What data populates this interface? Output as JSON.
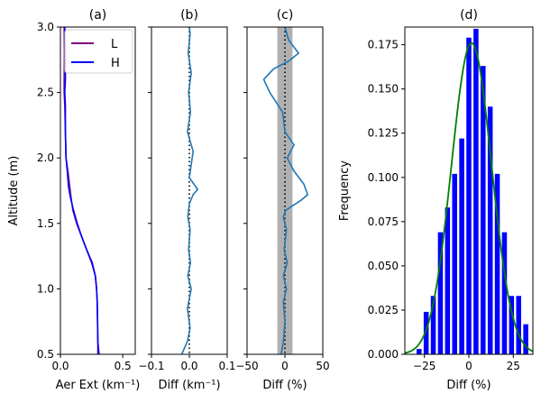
{
  "chart_data": [
    {
      "panel": "(a)",
      "type": "line",
      "title": "(a)",
      "xlabel": "Aer Ext (km⁻¹)",
      "ylabel": "Altitude (m)",
      "xlim": [
        0,
        0.6
      ],
      "ylim": [
        0.5,
        3.0
      ],
      "xticks": [
        0.0,
        0.5
      ],
      "xtick_labels": [
        "0.0",
        "0.5"
      ],
      "yticks": [
        0.5,
        1.0,
        1.5,
        2.0,
        2.5,
        3.0
      ],
      "ytick_labels": [
        "0.5",
        "1.0",
        "1.5",
        "2.0",
        "2.5",
        "3.0"
      ],
      "legend": {
        "position": "upper-right",
        "entries": [
          "L",
          "H"
        ]
      },
      "series": [
        {
          "name": "L",
          "color": "#800080",
          "points": [
            [
              0.3,
              0.5
            ],
            [
              0.3,
              0.6
            ],
            [
              0.298,
              0.75
            ],
            [
              0.295,
              0.9
            ],
            [
              0.29,
              1.0
            ],
            [
              0.28,
              1.1
            ],
            [
              0.25,
              1.2
            ],
            [
              0.21,
              1.3
            ],
            [
              0.17,
              1.4
            ],
            [
              0.13,
              1.5
            ],
            [
              0.1,
              1.6
            ],
            [
              0.085,
              1.7
            ],
            [
              0.075,
              1.78
            ],
            [
              0.06,
              1.9
            ],
            [
              0.045,
              2.0
            ],
            [
              0.04,
              2.2
            ],
            [
              0.035,
              2.4
            ],
            [
              0.03,
              2.5
            ],
            [
              0.03,
              2.6
            ],
            [
              0.032,
              2.8
            ],
            [
              0.03,
              3.0
            ]
          ]
        },
        {
          "name": "H",
          "color": "#0000ff",
          "points": [
            [
              0.31,
              0.5
            ],
            [
              0.3,
              0.6
            ],
            [
              0.298,
              0.75
            ],
            [
              0.295,
              0.9
            ],
            [
              0.29,
              1.0
            ],
            [
              0.28,
              1.1
            ],
            [
              0.255,
              1.2
            ],
            [
              0.21,
              1.3
            ],
            [
              0.17,
              1.4
            ],
            [
              0.135,
              1.5
            ],
            [
              0.105,
              1.6
            ],
            [
              0.08,
              1.7
            ],
            [
              0.065,
              1.78
            ],
            [
              0.055,
              1.9
            ],
            [
              0.045,
              2.0
            ],
            [
              0.04,
              2.2
            ],
            [
              0.04,
              2.4
            ],
            [
              0.035,
              2.5
            ],
            [
              0.04,
              2.6
            ],
            [
              0.04,
              2.8
            ],
            [
              0.035,
              3.0
            ]
          ]
        }
      ]
    },
    {
      "panel": "(b)",
      "type": "line",
      "title": "(b)",
      "xlabel": "Diff (km⁻¹)",
      "xlim": [
        -0.1,
        0.1
      ],
      "ylim": [
        0.5,
        3.0
      ],
      "xticks": [
        -0.1,
        0.0,
        0.1
      ],
      "xtick_labels": [
        "−0.1",
        "0.0",
        "0.1"
      ],
      "zero_line": {
        "x": 0.0,
        "style": "dotted",
        "color": "#000000"
      },
      "series": [
        {
          "color": "#1f77b4",
          "points": [
            [
              -0.02,
              0.5
            ],
            [
              -0.005,
              0.6
            ],
            [
              0.002,
              0.7
            ],
            [
              -0.005,
              0.85
            ],
            [
              0.005,
              1.0
            ],
            [
              -0.004,
              1.1
            ],
            [
              0.003,
              1.2
            ],
            [
              -0.002,
              1.3
            ],
            [
              0.002,
              1.45
            ],
            [
              -0.004,
              1.55
            ],
            [
              0.0,
              1.65
            ],
            [
              0.01,
              1.72
            ],
            [
              0.022,
              1.76
            ],
            [
              0.012,
              1.8
            ],
            [
              0.0,
              1.85
            ],
            [
              0.005,
              1.95
            ],
            [
              0.01,
              2.05
            ],
            [
              -0.005,
              2.2
            ],
            [
              0.003,
              2.35
            ],
            [
              -0.002,
              2.5
            ],
            [
              0.005,
              2.65
            ],
            [
              -0.003,
              2.8
            ],
            [
              0.002,
              2.95
            ],
            [
              0.0,
              3.0
            ]
          ]
        }
      ]
    },
    {
      "panel": "(c)",
      "type": "line",
      "title": "(c)",
      "xlabel": "Diff (%)",
      "xlim": [
        -50,
        50
      ],
      "ylim": [
        0.5,
        3.0
      ],
      "xticks": [
        -50,
        0,
        50
      ],
      "xtick_labels": [
        "−50",
        "0",
        "50"
      ],
      "shaded_band": {
        "x": [
          -10,
          10
        ],
        "color": "#b0b0b0"
      },
      "zero_line": {
        "x": 0,
        "style": "dotted",
        "color": "#000000"
      },
      "series": [
        {
          "color": "#1f77b4",
          "points": [
            [
              -5,
              0.5
            ],
            [
              -2,
              0.6
            ],
            [
              0,
              0.75
            ],
            [
              -2,
              0.9
            ],
            [
              2,
              1.0
            ],
            [
              -2,
              1.1
            ],
            [
              3,
              1.2
            ],
            [
              -1,
              1.3
            ],
            [
              2,
              1.45
            ],
            [
              -2,
              1.55
            ],
            [
              1,
              1.6
            ],
            [
              22,
              1.68
            ],
            [
              30,
              1.72
            ],
            [
              25,
              1.8
            ],
            [
              12,
              1.9
            ],
            [
              3,
              2.0
            ],
            [
              12,
              2.1
            ],
            [
              0,
              2.2
            ],
            [
              -3,
              2.35
            ],
            [
              -20,
              2.5
            ],
            [
              -28,
              2.6
            ],
            [
              -15,
              2.68
            ],
            [
              5,
              2.74
            ],
            [
              18,
              2.8
            ],
            [
              5,
              2.9
            ],
            [
              0,
              3.0
            ]
          ]
        }
      ]
    },
    {
      "panel": "(d)",
      "type": "bar",
      "title": "(d)",
      "xlabel": "Diff (%)",
      "ylabel": "Frequency",
      "xlim": [
        -36,
        36
      ],
      "ylim": [
        0.0,
        0.185
      ],
      "xticks": [
        -25,
        0,
        25
      ],
      "xtick_labels": [
        "−25",
        "0",
        "25"
      ],
      "yticks": [
        0.0,
        0.025,
        0.05,
        0.075,
        0.1,
        0.125,
        0.15,
        0.175
      ],
      "ytick_labels": [
        "0.000",
        "0.025",
        "0.050",
        "0.075",
        "0.100",
        "0.125",
        "0.150",
        "0.175"
      ],
      "bar_color": "#0000ff",
      "bar_width": 1.4,
      "bar_centers": [
        -28,
        -24,
        -20,
        -16,
        -12,
        -8,
        -4,
        0,
        4,
        8,
        12,
        16,
        20,
        24,
        28,
        32
      ],
      "values": [
        0.003,
        0.024,
        0.033,
        0.069,
        0.083,
        0.102,
        0.122,
        0.179,
        0.184,
        0.163,
        0.14,
        0.102,
        0.069,
        0.033,
        0.033,
        0.017
      ],
      "fit_curve": {
        "type": "gaussian",
        "mean": 1.5,
        "sigma": 11.3,
        "peak": 0.176,
        "color": "#008000"
      }
    }
  ]
}
